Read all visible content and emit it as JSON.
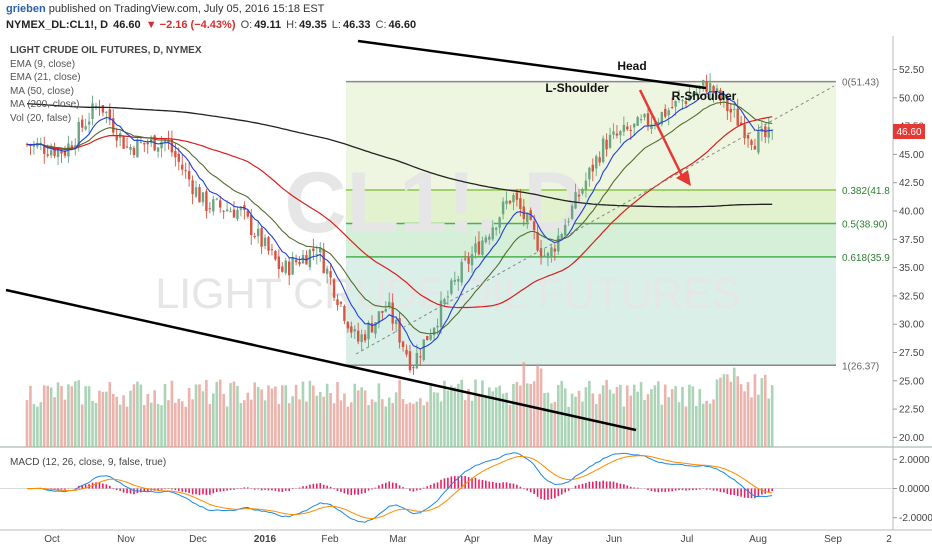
{
  "header": {
    "author": "grieben",
    "published_text": "published on TradingView.com, July 05, 2016 15:18 EST",
    "symbol": "NYMEX_DL:CL1!, D",
    "last": "46.60",
    "change": "▼ −2.16 (−4.43%)",
    "open_label": "O:",
    "open": "49.11",
    "high_label": "H:",
    "high": "49.35",
    "low_label": "L:",
    "low": "46.33",
    "close_label": "C:",
    "close": "46.60"
  },
  "legend": {
    "title": "LIGHT CRUDE OIL FUTURES, D, NYMEX",
    "items": [
      "EMA (9, close)",
      "EMA (21, close)",
      "MA (50, close)",
      "MA (200, close)",
      "Vol (20, false)"
    ]
  },
  "watermark": {
    "symbol": "CL1!, D",
    "name": "LIGHT CRUDE OIL FUTURES"
  },
  "annotations": {
    "head": "Head",
    "left_shoulder": "L-Shoulder",
    "right_shoulder": "R-Shoulder"
  },
  "price_tag": "46.60",
  "macd_legend": "MACD (12, 26, close, 9, false, true)",
  "colors": {
    "up": "#6ba583",
    "down": "#d75442",
    "ema9": "#1e40d8",
    "ema21": "#556b2f",
    "ma50": "#d62020",
    "ma200": "#222222",
    "arrow": "#e53935",
    "price_tag": "#e53935"
  },
  "chart_data": {
    "type": "candlestick",
    "title": "LIGHT CRUDE OIL FUTURES, D, NYMEX",
    "ylim": [
      19.5,
      53.5
    ],
    "y_ticks": [
      "52.50",
      "50.00",
      "47.50",
      "45.00",
      "42.50",
      "40.00",
      "37.50",
      "35.00",
      "32.50",
      "30.00",
      "27.50",
      "25.00",
      "22.50",
      "20.00"
    ],
    "x_ticks": [
      "Oct",
      "Nov",
      "Dec",
      "2016",
      "Feb",
      "Mar",
      "Apr",
      "May",
      "Jun",
      "Jul",
      "Aug",
      "Sep",
      "2"
    ],
    "fibonacci": [
      {
        "level": "0",
        "price": 51.43,
        "label": "0(51.43)"
      },
      {
        "level": "0.382",
        "price": 41.85,
        "label": "0.382(41.8"
      },
      {
        "level": "0.5",
        "price": 38.9,
        "label": "0.5(38.90)"
      },
      {
        "level": "0.618",
        "price": 35.95,
        "label": "0.618(35.9"
      },
      {
        "level": "1",
        "price": 26.37,
        "label": "1(26.37)"
      }
    ],
    "close_path": [
      [
        "2015-09-10",
        45.9
      ],
      [
        "2015-09-25",
        45.3
      ],
      [
        "2015-10-09",
        49.6
      ],
      [
        "2015-10-20",
        45.6
      ],
      [
        "2015-11-04",
        46.3
      ],
      [
        "2015-11-20",
        40.6
      ],
      [
        "2015-12-04",
        40.0
      ],
      [
        "2015-12-21",
        34.7
      ],
      [
        "2016-01-04",
        36.8
      ],
      [
        "2016-01-20",
        28.4
      ],
      [
        "2016-02-01",
        31.6
      ],
      [
        "2016-02-11",
        26.4
      ],
      [
        "2016-03-01",
        34.4
      ],
      [
        "2016-03-22",
        41.4
      ],
      [
        "2016-04-05",
        35.7
      ],
      [
        "2016-04-28",
        46.0
      ],
      [
        "2016-05-20",
        48.4
      ],
      [
        "2016-06-08",
        51.2
      ],
      [
        "2016-06-27",
        46.3
      ],
      [
        "2016-07-05",
        46.6
      ]
    ],
    "series": [
      {
        "name": "EMA (9, close)",
        "values": []
      },
      {
        "name": "EMA (21, close)",
        "values": []
      },
      {
        "name": "MA (50, close)",
        "values": []
      },
      {
        "name": "MA (200, close)",
        "values": []
      }
    ],
    "macd": {
      "name": "MACD (12, 26, close, 9, false, true)",
      "ylim": [
        -2.5,
        2.5
      ],
      "y_ticks": [
        "2.0000",
        "0.0000",
        "-2.0000"
      ]
    }
  }
}
